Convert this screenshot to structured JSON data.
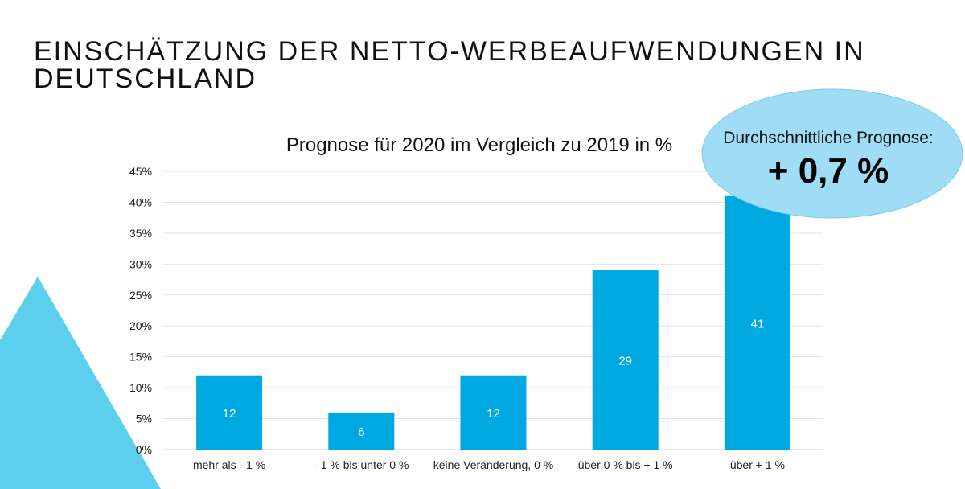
{
  "page": {
    "title": "EINSCHÄTZUNG DER NETTO-WERBEAUFWENDUNGEN IN DEUTSCHLAND"
  },
  "callout": {
    "label": "Durchschnittliche Prognose:",
    "value": "+ 0,7 %",
    "color": "#9fdcf6"
  },
  "colors": {
    "bar": "#00a8e1",
    "triangle": "#5ccfee",
    "grid": "#e3e3e3"
  },
  "chart_data": {
    "type": "bar",
    "title": "Prognose für 2020 im Vergleich zu 2019 in %",
    "categories": [
      "mehr als - 1 %",
      "- 1 % bis unter 0 %",
      "keine Veränderung, 0 %",
      "über 0 % bis + 1 %",
      "über + 1 %"
    ],
    "values": [
      12,
      6,
      12,
      29,
      41
    ],
    "data_labels": [
      "12",
      "6",
      "12",
      "29",
      "41"
    ],
    "ylim": [
      0,
      45
    ],
    "yticks": [
      "0%",
      "5%",
      "10%",
      "15%",
      "20%",
      "25%",
      "30%",
      "35%",
      "40%",
      "45%"
    ],
    "grid": true,
    "legend": "none",
    "xlabel": "",
    "ylabel": ""
  }
}
